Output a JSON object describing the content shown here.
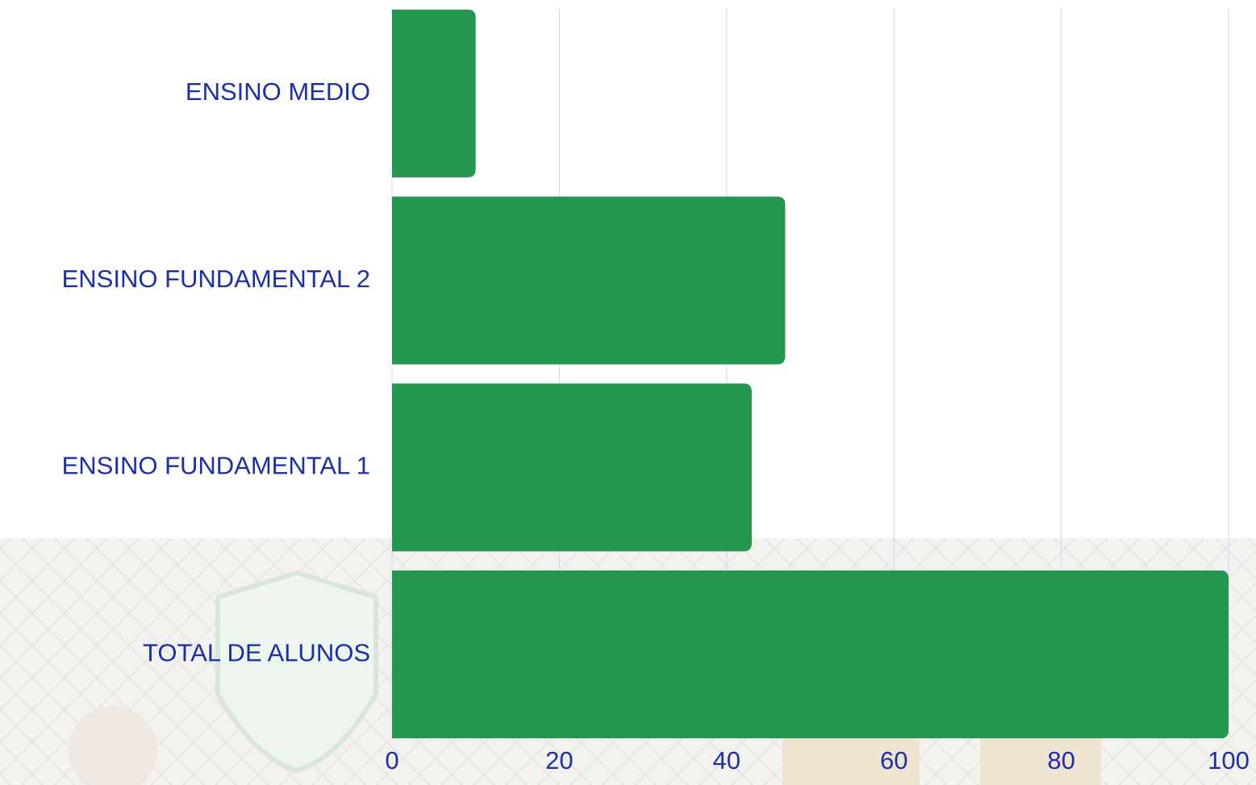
{
  "chart_data": {
    "type": "bar",
    "orientation": "horizontal",
    "categories": [
      "ENSINO MEDIO",
      "ENSINO FUNDAMENTAL 2",
      "ENSINO FUNDAMENTAL 1",
      "TOTAL DE ALUNOS"
    ],
    "values": [
      10,
      47,
      43,
      100
    ],
    "color": "#25964f",
    "xlim": [
      0,
      100
    ],
    "xticks": [
      0,
      20,
      40,
      60,
      80,
      100
    ],
    "grid": true
  }
}
